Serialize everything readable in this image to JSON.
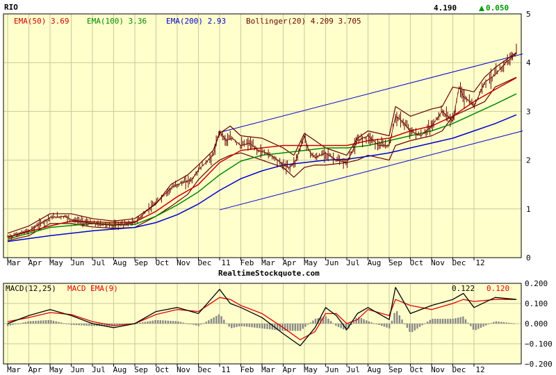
{
  "colors": {
    "background": "#ffffcc",
    "grid": "#c8c89a",
    "frame": "#000000",
    "ema50": "#cc0000",
    "ema100": "#008800",
    "ema200": "#0000cc",
    "bollinger": "#660000",
    "price": "#660000",
    "channel": "#0000cc",
    "macd": "#000000",
    "macd_ema": "#dd0000",
    "histogram": "#888888",
    "up_arrow": "#009900"
  },
  "chart_data": [
    {
      "type": "line",
      "symbol": "RIO",
      "last_price": "4.190",
      "change": "0.050",
      "change_icon": "up-triangle-icon",
      "watermark": "RealtimeStockquote.com",
      "ylim": [
        0,
        5
      ],
      "y_ticks": [
        0,
        1,
        2,
        3,
        4,
        5
      ],
      "month_labels": [
        "Mar",
        "Apr",
        "May",
        "Jun",
        "Jul",
        "Aug",
        "Sep",
        "Oct",
        "Nov",
        "Dec",
        "11",
        "Feb",
        "Mar",
        "Apr",
        "May",
        "Jun",
        "Jul",
        "Aug",
        "Sep",
        "Oct",
        "Nov",
        "Dec",
        "12"
      ],
      "legend": [
        {
          "label": "EMA(50)",
          "value": "3.69",
          "color": "#cc0000"
        },
        {
          "label": "EMA(100)",
          "value": "3.36",
          "color": "#008800"
        },
        {
          "label": "EMA(200)",
          "value": "2.93",
          "color": "#0000cc"
        },
        {
          "label": "Bollinger(20)",
          "value": "4.209 3.705",
          "color": "#660000"
        }
      ],
      "price_points": [
        [
          0,
          0.42
        ],
        [
          1,
          0.55
        ],
        [
          2,
          0.82
        ],
        [
          2.7,
          0.85
        ],
        [
          3,
          0.78
        ],
        [
          4,
          0.7
        ],
        [
          5,
          0.66
        ],
        [
          6,
          0.72
        ],
        [
          6.7,
          1.02
        ],
        [
          7,
          1.12
        ],
        [
          7.7,
          1.42
        ],
        [
          8,
          1.5
        ],
        [
          8.7,
          1.6
        ],
        [
          9,
          1.8
        ],
        [
          9.7,
          2.1
        ],
        [
          10,
          2.6
        ],
        [
          10.3,
          2.4
        ],
        [
          10.6,
          2.45
        ],
        [
          11,
          2.3
        ],
        [
          11.4,
          2.35
        ],
        [
          11.8,
          2.2
        ],
        [
          12.2,
          2.15
        ],
        [
          12.6,
          2.05
        ],
        [
          13,
          1.9
        ],
        [
          13.3,
          1.85
        ],
        [
          13.6,
          2.0
        ],
        [
          14,
          2.5
        ],
        [
          14.2,
          2.2
        ],
        [
          14.5,
          2.05
        ],
        [
          15,
          2.15
        ],
        [
          15.5,
          2.0
        ],
        [
          16,
          1.95
        ],
        [
          16.5,
          2.4
        ],
        [
          17,
          2.5
        ],
        [
          17.5,
          2.3
        ],
        [
          18,
          2.3
        ],
        [
          18.3,
          2.9
        ],
        [
          18.6,
          2.8
        ],
        [
          19,
          2.6
        ],
        [
          19.5,
          2.5
        ],
        [
          20,
          2.7
        ],
        [
          20.5,
          3.0
        ],
        [
          21,
          2.8
        ],
        [
          21.3,
          3.5
        ],
        [
          21.5,
          3.3
        ],
        [
          21.8,
          3.2
        ],
        [
          22,
          3.1
        ],
        [
          22.5,
          3.6
        ],
        [
          23,
          3.75
        ],
        [
          23.5,
          4.0
        ],
        [
          24,
          4.19
        ]
      ],
      "ema50_points": [
        [
          0,
          0.42
        ],
        [
          2,
          0.65
        ],
        [
          3,
          0.75
        ],
        [
          5,
          0.72
        ],
        [
          6,
          0.73
        ],
        [
          7,
          0.95
        ],
        [
          8,
          1.25
        ],
        [
          9,
          1.5
        ],
        [
          10,
          1.95
        ],
        [
          11,
          2.2
        ],
        [
          12,
          2.25
        ],
        [
          13,
          2.3
        ],
        [
          14,
          2.3
        ],
        [
          15,
          2.3
        ],
        [
          16,
          2.3
        ],
        [
          17,
          2.4
        ],
        [
          18,
          2.45
        ],
        [
          19,
          2.6
        ],
        [
          20,
          2.7
        ],
        [
          21,
          2.9
        ],
        [
          22,
          3.2
        ],
        [
          23,
          3.45
        ],
        [
          24,
          3.69
        ]
      ],
      "ema100_points": [
        [
          0,
          0.38
        ],
        [
          2,
          0.62
        ],
        [
          4,
          0.7
        ],
        [
          6,
          0.68
        ],
        [
          7,
          0.85
        ],
        [
          8,
          1.08
        ],
        [
          9,
          1.35
        ],
        [
          10,
          1.7
        ],
        [
          11,
          1.98
        ],
        [
          12,
          2.1
        ],
        [
          13,
          2.15
        ],
        [
          14,
          2.2
        ],
        [
          15,
          2.25
        ],
        [
          16,
          2.25
        ],
        [
          17,
          2.3
        ],
        [
          18,
          2.4
        ],
        [
          19,
          2.5
        ],
        [
          20,
          2.6
        ],
        [
          21,
          2.75
        ],
        [
          22,
          2.95
        ],
        [
          23,
          3.15
        ],
        [
          24,
          3.36
        ]
      ],
      "ema200_points": [
        [
          0,
          0.33
        ],
        [
          2,
          0.45
        ],
        [
          4,
          0.55
        ],
        [
          6,
          0.62
        ],
        [
          7,
          0.72
        ],
        [
          8,
          0.88
        ],
        [
          9,
          1.1
        ],
        [
          10,
          1.38
        ],
        [
          11,
          1.62
        ],
        [
          12,
          1.78
        ],
        [
          13,
          1.9
        ],
        [
          14,
          1.95
        ],
        [
          15,
          2.0
        ],
        [
          16,
          2.02
        ],
        [
          17,
          2.08
        ],
        [
          18,
          2.15
        ],
        [
          19,
          2.25
        ],
        [
          20,
          2.35
        ],
        [
          21,
          2.45
        ],
        [
          22,
          2.6
        ],
        [
          23,
          2.75
        ],
        [
          24,
          2.93
        ]
      ],
      "boll_upper_points": [
        [
          0,
          0.5
        ],
        [
          1,
          0.65
        ],
        [
          2,
          0.9
        ],
        [
          3,
          0.9
        ],
        [
          4,
          0.8
        ],
        [
          5,
          0.75
        ],
        [
          6,
          0.8
        ],
        [
          7,
          1.1
        ],
        [
          7.7,
          1.5
        ],
        [
          8.5,
          1.7
        ],
        [
          9,
          1.9
        ],
        [
          9.7,
          2.2
        ],
        [
          10,
          2.55
        ],
        [
          10.5,
          2.7
        ],
        [
          11,
          2.5
        ],
        [
          12,
          2.45
        ],
        [
          13,
          2.25
        ],
        [
          13.5,
          2.1
        ],
        [
          14,
          2.55
        ],
        [
          14.5,
          2.4
        ],
        [
          15,
          2.25
        ],
        [
          16,
          2.1
        ],
        [
          16.5,
          2.45
        ],
        [
          17,
          2.6
        ],
        [
          18,
          2.5
        ],
        [
          18.3,
          3.1
        ],
        [
          19,
          2.9
        ],
        [
          20,
          3.05
        ],
        [
          20.5,
          3.1
        ],
        [
          21,
          3.5
        ],
        [
          22,
          3.4
        ],
        [
          22.5,
          3.7
        ],
        [
          23,
          3.9
        ],
        [
          24,
          4.21
        ]
      ],
      "boll_lower_points": [
        [
          0,
          0.35
        ],
        [
          1,
          0.45
        ],
        [
          2,
          0.7
        ],
        [
          3,
          0.7
        ],
        [
          4,
          0.63
        ],
        [
          5,
          0.6
        ],
        [
          6,
          0.62
        ],
        [
          7,
          0.85
        ],
        [
          7.7,
          1.05
        ],
        [
          8.5,
          1.3
        ],
        [
          9,
          1.6
        ],
        [
          9.7,
          1.9
        ],
        [
          10,
          2.0
        ],
        [
          10.5,
          2.1
        ],
        [
          11,
          2.15
        ],
        [
          12,
          2.0
        ],
        [
          13,
          1.85
        ],
        [
          13.5,
          1.65
        ],
        [
          14,
          1.85
        ],
        [
          14.5,
          1.9
        ],
        [
          15,
          1.9
        ],
        [
          16,
          1.95
        ],
        [
          16.5,
          2.0
        ],
        [
          17,
          2.1
        ],
        [
          18,
          2.0
        ],
        [
          18.3,
          2.3
        ],
        [
          19,
          2.4
        ],
        [
          20,
          2.5
        ],
        [
          20.5,
          2.6
        ],
        [
          21,
          2.9
        ],
        [
          22,
          3.1
        ],
        [
          22.5,
          3.2
        ],
        [
          23,
          3.5
        ],
        [
          24,
          3.7
        ]
      ],
      "channel_upper": [
        [
          10,
          2.57
        ],
        [
          24.3,
          4.18
        ]
      ],
      "channel_lower": [
        [
          10,
          0.98
        ],
        [
          24.3,
          2.6
        ]
      ]
    },
    {
      "type": "line",
      "title_macd": "MACD(12,25)",
      "title_ema": "MACD EMA(9)",
      "macd_value": "0.122",
      "macd_ema_value": "0.120",
      "ylim": [
        -0.2,
        0.2
      ],
      "y_ticks": [
        "0.200",
        "0.100",
        "0.000",
        "−0.100",
        "−0.200"
      ],
      "month_labels": [
        "Mar",
        "Apr",
        "May",
        "Jun",
        "Jul",
        "Aug",
        "Sep",
        "Oct",
        "Nov",
        "Dec",
        "11",
        "Feb",
        "Mar",
        "Apr",
        "May",
        "Jun",
        "Jul",
        "Aug",
        "Sep",
        "Oct",
        "Nov",
        "Dec",
        "12"
      ],
      "macd_points": [
        [
          0,
          0.0
        ],
        [
          1,
          0.04
        ],
        [
          2,
          0.07
        ],
        [
          3,
          0.04
        ],
        [
          4,
          0.0
        ],
        [
          5,
          -0.02
        ],
        [
          6,
          0.0
        ],
        [
          7,
          0.06
        ],
        [
          8,
          0.08
        ],
        [
          9,
          0.05
        ],
        [
          10,
          0.17
        ],
        [
          10.5,
          0.1
        ],
        [
          11,
          0.08
        ],
        [
          12,
          0.03
        ],
        [
          13,
          -0.05
        ],
        [
          13.8,
          -0.11
        ],
        [
          14.5,
          -0.02
        ],
        [
          15,
          0.08
        ],
        [
          15.5,
          0.04
        ],
        [
          16,
          -0.03
        ],
        [
          16.5,
          0.05
        ],
        [
          17,
          0.08
        ],
        [
          18,
          0.02
        ],
        [
          18.3,
          0.18
        ],
        [
          19,
          0.05
        ],
        [
          20,
          0.09
        ],
        [
          21,
          0.12
        ],
        [
          21.5,
          0.15
        ],
        [
          22,
          0.08
        ],
        [
          23,
          0.13
        ],
        [
          24,
          0.12
        ]
      ],
      "macd_ema_points": [
        [
          0,
          0.01
        ],
        [
          1,
          0.03
        ],
        [
          2,
          0.055
        ],
        [
          3,
          0.045
        ],
        [
          4,
          0.01
        ],
        [
          5,
          -0.01
        ],
        [
          6,
          0.0
        ],
        [
          7,
          0.045
        ],
        [
          8,
          0.07
        ],
        [
          9,
          0.06
        ],
        [
          10,
          0.13
        ],
        [
          10.5,
          0.12
        ],
        [
          11,
          0.09
        ],
        [
          12,
          0.05
        ],
        [
          13,
          -0.02
        ],
        [
          13.8,
          -0.08
        ],
        [
          14.5,
          -0.04
        ],
        [
          15,
          0.05
        ],
        [
          15.5,
          0.05
        ],
        [
          16,
          0.0
        ],
        [
          16.5,
          0.02
        ],
        [
          17,
          0.07
        ],
        [
          18,
          0.04
        ],
        [
          18.3,
          0.12
        ],
        [
          19,
          0.09
        ],
        [
          20,
          0.07
        ],
        [
          21,
          0.1
        ],
        [
          21.5,
          0.12
        ],
        [
          22,
          0.11
        ],
        [
          23,
          0.12
        ],
        [
          24,
          0.12
        ]
      ]
    }
  ]
}
